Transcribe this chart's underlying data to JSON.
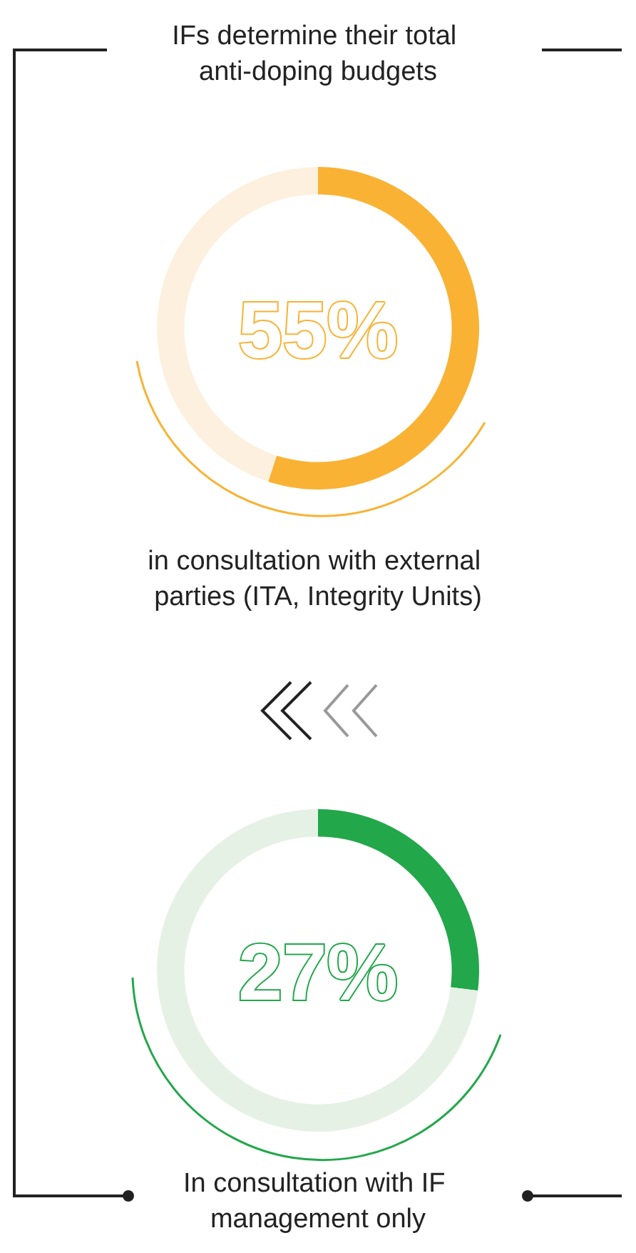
{
  "chart_data": [
    {
      "type": "donut",
      "title": "IFs determine their total anti-doping budgets",
      "categories": [
        null,
        null
      ],
      "values": [
        55,
        45
      ],
      "colors": [
        "#f9b233",
        "#fdf0de"
      ],
      "annotations": [
        "55%",
        "in consultation with external parties (ITA, Integrity Units)"
      ]
    },
    {
      "type": "donut",
      "categories": [
        null,
        null
      ],
      "values": [
        27,
        73
      ],
      "colors": [
        "#22a74a",
        "#e6f1e5"
      ],
      "annotations": [
        "27%",
        "In consultation with IF management only"
      ]
    }
  ]
}
